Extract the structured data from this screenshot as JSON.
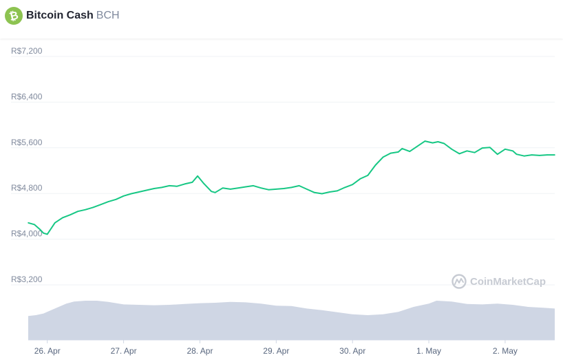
{
  "header": {
    "name": "Bitcoin Cash",
    "symbol": "BCH"
  },
  "watermark": "CoinMarketCap",
  "colors": {
    "price_line": "#16c784",
    "volume_fill": "#cfd6e4",
    "brand": "#8dc351"
  },
  "chart_data": {
    "type": "line",
    "title": "",
    "xlabel": "",
    "ylabel": "",
    "y_tick_labels": [
      "R$7,200",
      "R$6,400",
      "R$5,600",
      "R$4,800",
      "R$4,000",
      "R$3,200"
    ],
    "y_ticks": [
      7200,
      6400,
      5600,
      4800,
      4000,
      3200
    ],
    "ylim": [
      2800,
      7400
    ],
    "x_tick_labels": [
      "26. Apr",
      "27. Apr",
      "28. Apr",
      "29. Apr",
      "30. Apr",
      "1. May",
      "2. May"
    ],
    "x_ticks": [
      0,
      1,
      2,
      3,
      4,
      5,
      6
    ],
    "xlim": [
      -0.25,
      6.65
    ],
    "grid": true,
    "series": [
      {
        "kind": "price",
        "x": [
          -0.25,
          -0.17,
          -0.1,
          -0.05,
          0.0,
          0.05,
          0.1,
          0.2,
          0.3,
          0.4,
          0.5,
          0.6,
          0.7,
          0.8,
          0.9,
          1.0,
          1.1,
          1.2,
          1.3,
          1.4,
          1.5,
          1.6,
          1.7,
          1.8,
          1.9,
          1.97,
          2.05,
          2.15,
          2.2,
          2.3,
          2.4,
          2.5,
          2.6,
          2.7,
          2.8,
          2.9,
          3.0,
          3.1,
          3.2,
          3.3,
          3.4,
          3.5,
          3.6,
          3.7,
          3.8,
          3.9,
          4.0,
          4.1,
          4.2,
          4.3,
          4.4,
          4.5,
          4.6,
          4.65,
          4.75,
          4.85,
          4.95,
          5.05,
          5.12,
          5.2,
          5.3,
          5.4,
          5.5,
          5.6,
          5.7,
          5.8,
          5.9,
          6.0,
          6.1,
          6.15,
          6.25,
          6.35,
          6.45,
          6.55,
          6.65
        ],
        "values": [
          4190,
          4160,
          4080,
          4010,
          3990,
          4090,
          4190,
          4280,
          4330,
          4390,
          4420,
          4460,
          4510,
          4560,
          4600,
          4660,
          4700,
          4730,
          4760,
          4790,
          4810,
          4840,
          4830,
          4870,
          4900,
          5010,
          4880,
          4740,
          4720,
          4800,
          4780,
          4800,
          4820,
          4840,
          4800,
          4770,
          4780,
          4790,
          4810,
          4840,
          4780,
          4720,
          4700,
          4730,
          4750,
          4810,
          4860,
          4960,
          5020,
          5200,
          5340,
          5410,
          5430,
          5490,
          5440,
          5530,
          5620,
          5590,
          5610,
          5580,
          5480,
          5400,
          5450,
          5420,
          5500,
          5510,
          5390,
          5480,
          5450,
          5390,
          5360,
          5380,
          5370,
          5380,
          5380
        ]
      },
      {
        "kind": "volume",
        "x": [
          -0.25,
          -0.15,
          -0.05,
          0.05,
          0.15,
          0.25,
          0.35,
          0.5,
          0.65,
          0.8,
          1.0,
          1.2,
          1.4,
          1.6,
          1.8,
          2.0,
          2.2,
          2.4,
          2.6,
          2.8,
          3.0,
          3.2,
          3.4,
          3.6,
          3.8,
          4.0,
          4.2,
          4.4,
          4.6,
          4.8,
          5.0,
          5.1,
          5.3,
          5.5,
          5.7,
          5.9,
          6.1,
          6.3,
          6.5,
          6.65
        ],
        "values": [
          0.58,
          0.6,
          0.64,
          0.72,
          0.8,
          0.88,
          0.93,
          0.95,
          0.95,
          0.92,
          0.86,
          0.85,
          0.84,
          0.85,
          0.87,
          0.89,
          0.9,
          0.92,
          0.91,
          0.88,
          0.83,
          0.82,
          0.76,
          0.72,
          0.67,
          0.62,
          0.6,
          0.62,
          0.68,
          0.8,
          0.88,
          0.95,
          0.93,
          0.87,
          0.86,
          0.88,
          0.85,
          0.8,
          0.78,
          0.76
        ]
      }
    ]
  }
}
